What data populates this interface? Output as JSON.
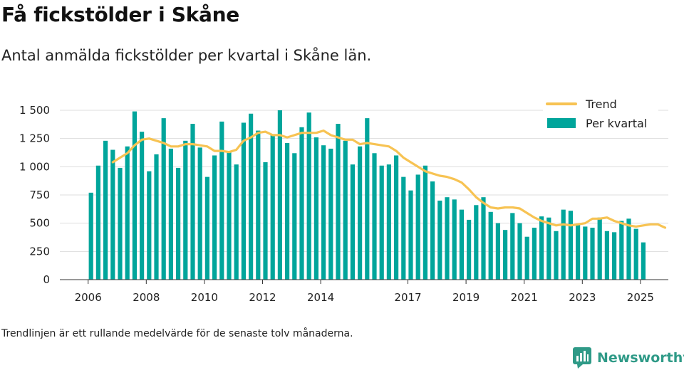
{
  "title": "Få fickstölder i Skåne",
  "subtitle": "Antal anmälda fickstölder per kvartal i Skåne län.",
  "note": "Trendlinjen är ett rullande medelvärde för de senaste tolv månaderna.",
  "brand": {
    "name": "Newsworthy",
    "icon": "bar-chart-logo-icon",
    "color": "#2f9a87"
  },
  "colors": {
    "bars": "#00a59b",
    "trend": "#f7c353",
    "grid": "#dddddd"
  },
  "chart_data": {
    "type": "bar",
    "legend": {
      "placement": "top-right",
      "entries": [
        "Trend",
        "Per kvartal"
      ]
    },
    "x_axis": {
      "ticks": [
        2006,
        2008,
        2010,
        2012,
        2014,
        2017,
        2019,
        2021,
        2023,
        2025
      ]
    },
    "y_axis": {
      "range": [
        0,
        1550
      ],
      "ticks": [
        0,
        250,
        500,
        750,
        1000,
        1250,
        1500
      ],
      "tick_labels": [
        "0",
        "250",
        "500",
        "750",
        "1 000",
        "1 250",
        "1 500"
      ]
    },
    "grid": true,
    "series": [
      {
        "name": "Per kvartal",
        "kind": "bar",
        "start": "2006 Q1",
        "values": [
          770,
          1010,
          1230,
          1150,
          990,
          1180,
          1490,
          1310,
          960,
          1110,
          1430,
          1160,
          990,
          1230,
          1380,
          1170,
          910,
          1100,
          1400,
          1140,
          1020,
          1390,
          1470,
          1320,
          1040,
          1280,
          1500,
          1210,
          1120,
          1350,
          1480,
          1260,
          1190,
          1160,
          1380,
          1230,
          1020,
          1180,
          1430,
          1120,
          1010,
          1020,
          1100,
          910,
          790,
          930,
          1010,
          870,
          700,
          730,
          710,
          620,
          530,
          660,
          730,
          600,
          500,
          440,
          590,
          500,
          380,
          460,
          560,
          550,
          430,
          620,
          610,
          490,
          470,
          460,
          550,
          430,
          420,
          520,
          540,
          450,
          330
        ]
      },
      {
        "name": "Trend",
        "kind": "line",
        "start": "2006 Q4",
        "values": [
          1040,
          1080,
          1120,
          1190,
          1240,
          1250,
          1230,
          1210,
          1180,
          1180,
          1200,
          1200,
          1190,
          1180,
          1140,
          1140,
          1130,
          1150,
          1230,
          1260,
          1300,
          1310,
          1280,
          1280,
          1260,
          1280,
          1300,
          1300,
          1300,
          1320,
          1280,
          1260,
          1240,
          1240,
          1200,
          1210,
          1200,
          1190,
          1180,
          1140,
          1080,
          1040,
          1000,
          960,
          940,
          920,
          910,
          890,
          860,
          800,
          730,
          680,
          640,
          630,
          640,
          640,
          630,
          590,
          550,
          520,
          500,
          480,
          490,
          480,
          490,
          500,
          540,
          540,
          550,
          520,
          500,
          480,
          470,
          480,
          490,
          490,
          460
        ]
      }
    ]
  }
}
